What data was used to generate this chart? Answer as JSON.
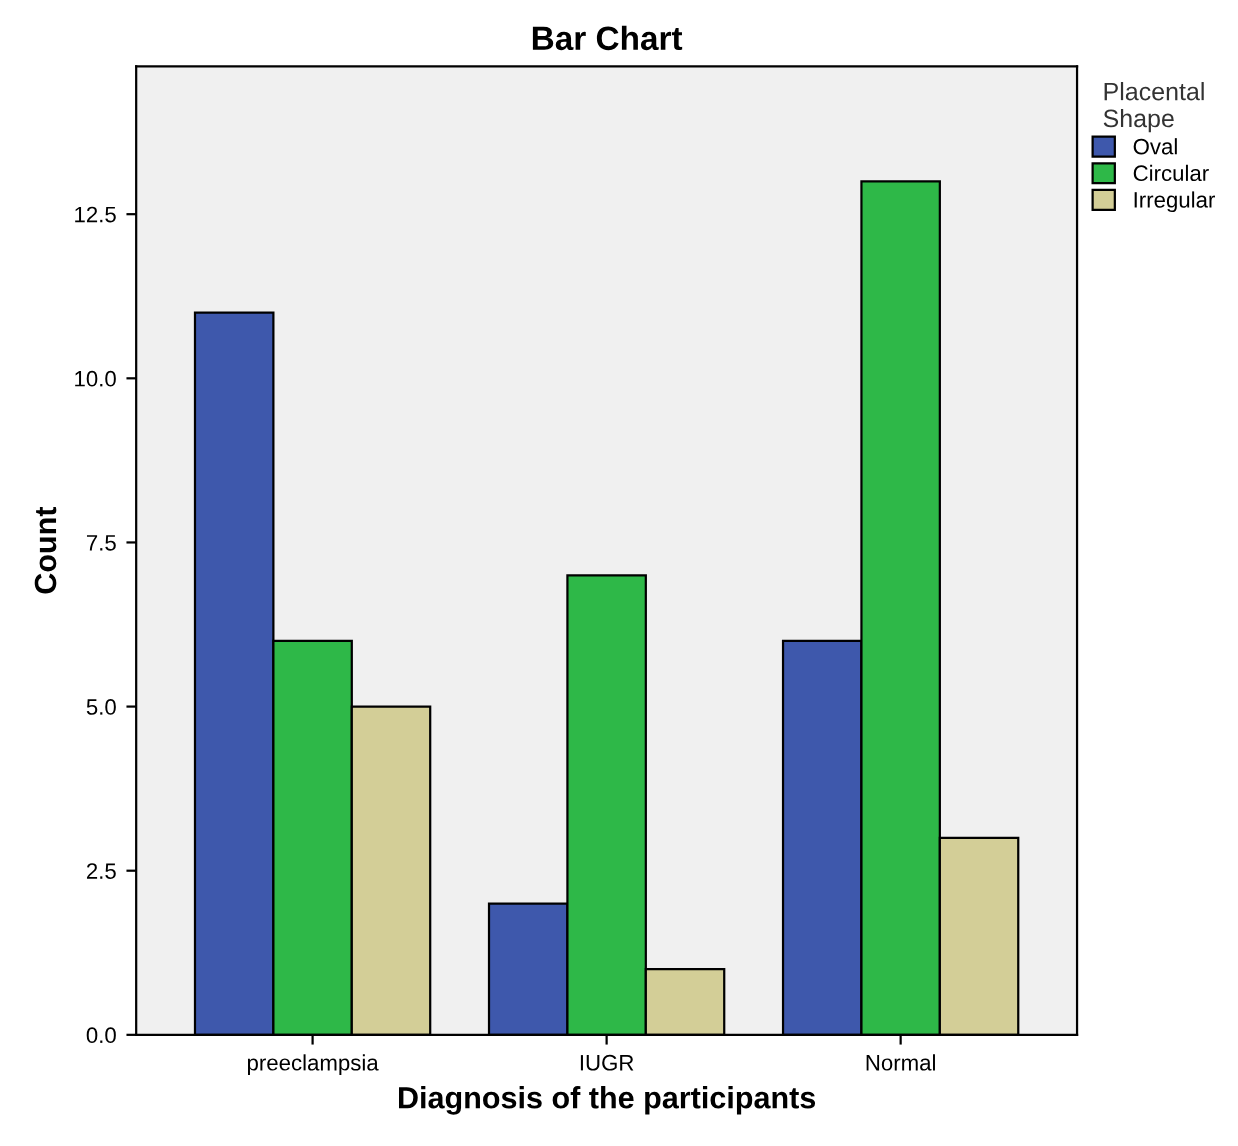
{
  "chart_data": {
    "type": "bar",
    "title": "Bar Chart",
    "xlabel": "Diagnosis of the participants",
    "ylabel": "Count",
    "legend_title": "Placental\nShape",
    "categories": [
      "preeclampsia",
      "IUGR",
      "Normal"
    ],
    "series": [
      {
        "name": "Oval",
        "color": "#3e58ac",
        "values": [
          11,
          2,
          6
        ]
      },
      {
        "name": "Circular",
        "color": "#2eb848",
        "values": [
          6,
          7,
          13
        ]
      },
      {
        "name": "Irregular",
        "color": "#d3ce97",
        "values": [
          5,
          1,
          3
        ]
      }
    ],
    "ylim": [
      0,
      14.75
    ],
    "yticks": [
      {
        "value": 0,
        "label": "0.0"
      },
      {
        "value": 2.5,
        "label": "2.5"
      },
      {
        "value": 5,
        "label": "5.0"
      },
      {
        "value": 7.5,
        "label": "7.5"
      },
      {
        "value": 10,
        "label": "10.0"
      },
      {
        "value": 12.5,
        "label": "12.5"
      }
    ],
    "grid": false,
    "legend": "top right"
  }
}
